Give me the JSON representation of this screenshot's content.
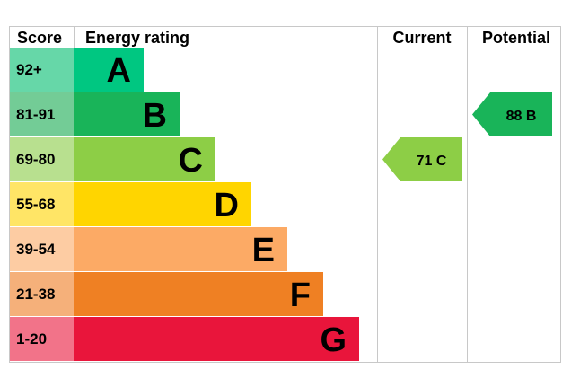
{
  "chart_data": {
    "type": "bar",
    "headers": {
      "score": "Score",
      "energy_rating": "Energy rating",
      "current": "Current",
      "potential": "Potential"
    },
    "bands": [
      {
        "score": "92+",
        "letter": "A",
        "color": "#00c781",
        "score_bg": "#66d7a8"
      },
      {
        "score": "81-91",
        "letter": "B",
        "color": "#19b459",
        "score_bg": "#73cc96"
      },
      {
        "score": "69-80",
        "letter": "C",
        "color": "#8dce46",
        "score_bg": "#b8e08f"
      },
      {
        "score": "55-68",
        "letter": "D",
        "color": "#ffd500",
        "score_bg": "#ffe566"
      },
      {
        "score": "39-54",
        "letter": "E",
        "color": "#fcaa65",
        "score_bg": "#fdcca3"
      },
      {
        "score": "21-38",
        "letter": "F",
        "color": "#ef8023",
        "score_bg": "#f5b07a"
      },
      {
        "score": "1-20",
        "letter": "G",
        "color": "#e9153b",
        "score_bg": "#f27389"
      }
    ],
    "current": {
      "value": 71,
      "band": "C",
      "label": "71  C",
      "color": "#8dce46"
    },
    "potential": {
      "value": 88,
      "band": "B",
      "label": "88  B",
      "color": "#19b459"
    }
  }
}
